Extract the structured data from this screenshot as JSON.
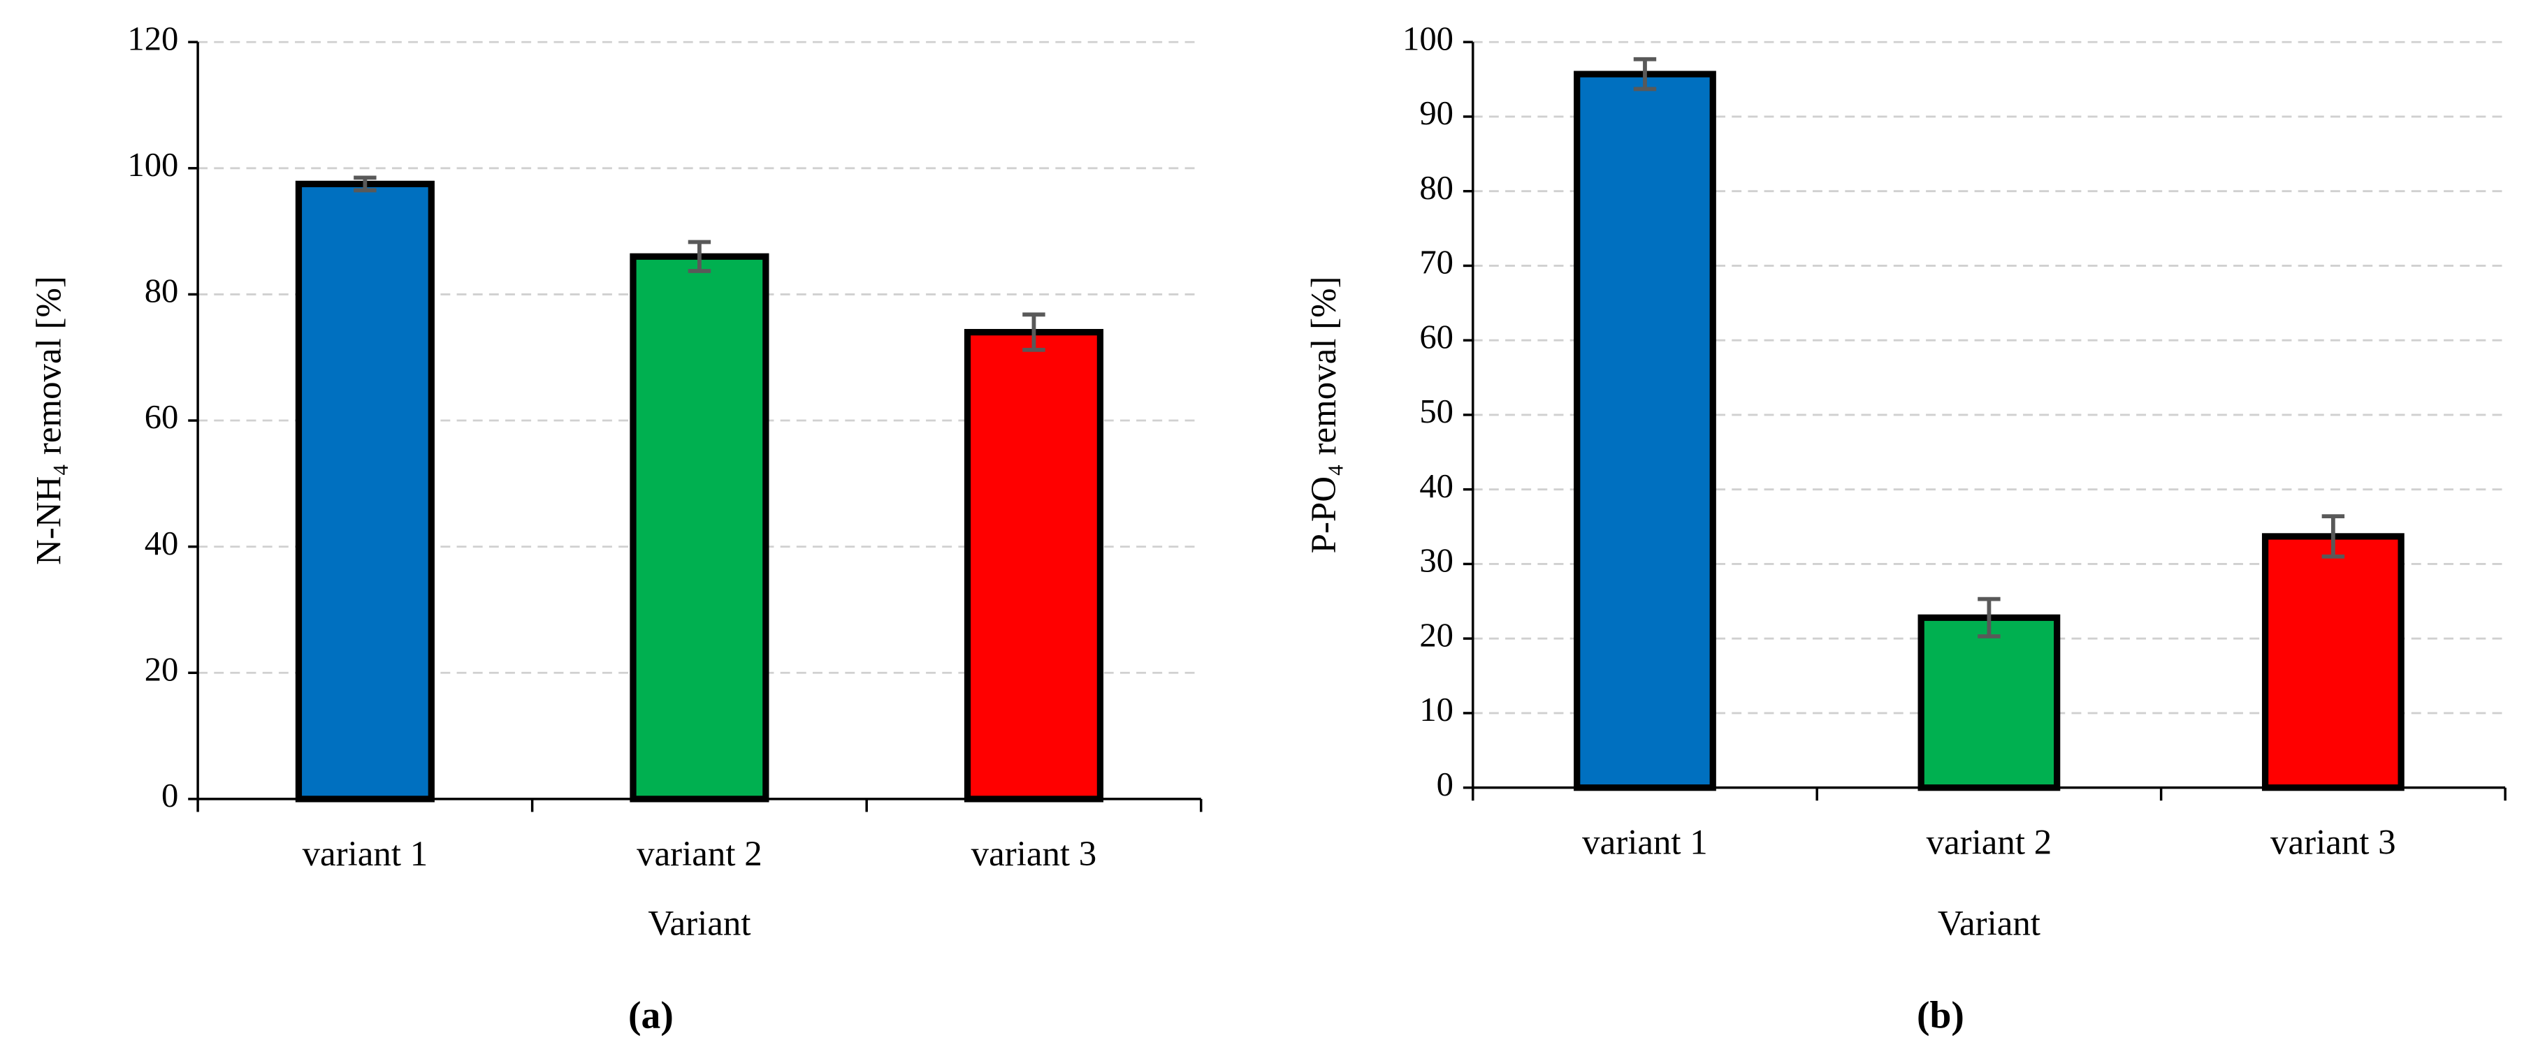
{
  "chart_data": [
    {
      "type": "bar",
      "panel_label": "(a)",
      "x_label": "Variant",
      "y_label": "N-NH₄ removal [%]",
      "categories": [
        "variant 1",
        "variant 2",
        "variant 3"
      ],
      "values": [
        97.5,
        86,
        74
      ],
      "errors": [
        1,
        2.3,
        2.8
      ],
      "colors": [
        "#0070c0",
        "#00b050",
        "#ff0000"
      ],
      "ylim": [
        0,
        120
      ],
      "yticks": [
        0,
        20,
        40,
        60,
        80,
        100,
        120
      ],
      "grid": true
    },
    {
      "type": "bar",
      "panel_label": "(b)",
      "x_label": "Variant",
      "y_label": "P-PO₄ removal [%]",
      "categories": [
        "variant 1",
        "variant 2",
        "variant 3"
      ],
      "values": [
        95.7,
        22.8,
        33.7
      ],
      "errors": [
        2,
        2.5,
        2.7
      ],
      "colors": [
        "#0070c0",
        "#00b050",
        "#ff0000"
      ],
      "ylim": [
        0,
        100
      ],
      "yticks": [
        0,
        10,
        20,
        30,
        40,
        50,
        60,
        70,
        80,
        90,
        100
      ],
      "grid": true
    }
  ]
}
